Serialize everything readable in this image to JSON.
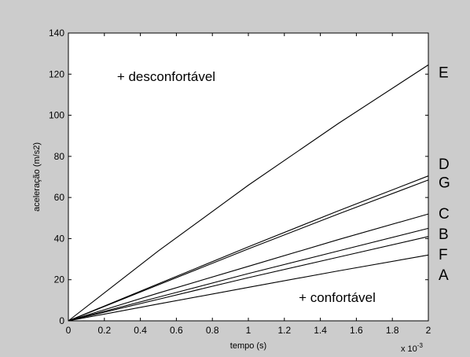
{
  "chart_data": {
    "type": "line",
    "title": "",
    "xlabel": "tempo (s)",
    "ylabel": "aceleração (m/s2)",
    "x_exponent_label": "x 10",
    "x_exponent_power": "-3",
    "xlim": [
      0,
      2
    ],
    "ylim": [
      0,
      140
    ],
    "x_ticks": [
      "0",
      "0.2",
      "0.4",
      "0.6",
      "0.8",
      "1",
      "1.2",
      "1.4",
      "1.6",
      "1.8",
      "2"
    ],
    "y_ticks": [
      "0",
      "20",
      "40",
      "60",
      "80",
      "100",
      "120",
      "140"
    ],
    "grid": false,
    "line_color": "#000000",
    "series": [
      {
        "name": "E",
        "x": [
          0,
          0.5,
          1.0,
          1.5,
          2.0
        ],
        "y": [
          0,
          34,
          66,
          96,
          124.5
        ]
      },
      {
        "name": "D",
        "x": [
          0,
          0.5,
          1.0,
          1.5,
          2.0
        ],
        "y": [
          0,
          18,
          36,
          53.5,
          70.5
        ]
      },
      {
        "name": "G",
        "x": [
          0,
          0.5,
          1.0,
          1.5,
          2.0
        ],
        "y": [
          0,
          17.5,
          35,
          52,
          68.5
        ]
      },
      {
        "name": "C",
        "x": [
          0,
          0.5,
          1.0,
          1.5,
          2.0
        ],
        "y": [
          0,
          13.5,
          26.5,
          39.5,
          52
        ]
      },
      {
        "name": "B",
        "x": [
          0,
          0.5,
          1.0,
          1.5,
          2.0
        ],
        "y": [
          0,
          11.5,
          23,
          34,
          45
        ]
      },
      {
        "name": "F",
        "x": [
          0,
          0.5,
          1.0,
          1.5,
          2.0
        ],
        "y": [
          0,
          10.5,
          21,
          31,
          41
        ]
      },
      {
        "name": "A",
        "x": [
          0,
          0.5,
          1.0,
          1.5,
          2.0
        ],
        "y": [
          0,
          8.2,
          16.3,
          24.3,
          32
        ]
      }
    ],
    "curve_labels": [
      {
        "text": "E",
        "y": 121
      },
      {
        "text": "D",
        "y": 76.5
      },
      {
        "text": "G",
        "y": 67.5
      },
      {
        "text": "C",
        "y": 52.5
      },
      {
        "text": "B",
        "y": 42.5
      },
      {
        "text": "F",
        "y": 32.5
      },
      {
        "text": "A",
        "y": 22.5
      }
    ],
    "annotations": [
      {
        "text": "+ desconfortável",
        "x": 0.27,
        "y": 119
      },
      {
        "text": "+ confortável",
        "x": 1.28,
        "y": 11.5
      }
    ]
  }
}
